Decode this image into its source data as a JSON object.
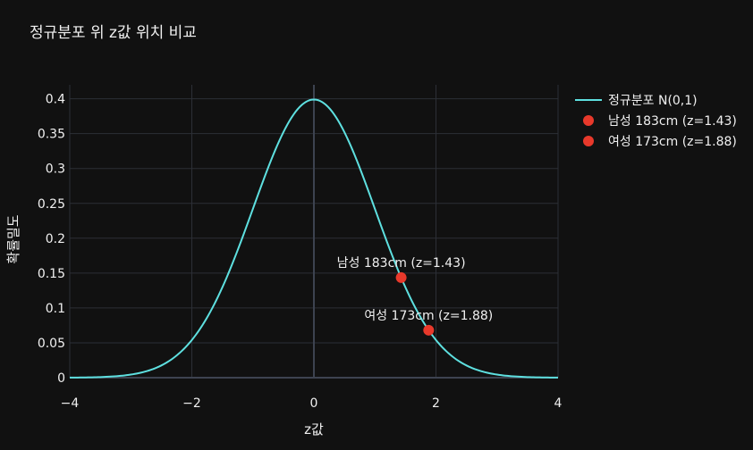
{
  "chart_data": {
    "type": "line",
    "title": "정규분포 위 z값 위치 비교",
    "xlabel": "z값",
    "ylabel": "확률밀도",
    "xlim": [
      -4,
      4
    ],
    "ylim": [
      0,
      0.42
    ],
    "x_ticks": [
      -4,
      -2,
      0,
      2,
      4
    ],
    "x_tick_labels": [
      "−4",
      "−2",
      "0",
      "2",
      "4"
    ],
    "y_ticks": [
      0,
      0.05,
      0.1,
      0.15,
      0.2,
      0.25,
      0.3,
      0.35,
      0.4
    ],
    "y_tick_labels": [
      "0",
      "0.05",
      "0.1",
      "0.15",
      "0.2",
      "0.25",
      "0.3",
      "0.35",
      "0.4"
    ],
    "grid": true,
    "legend_position": "right",
    "series": [
      {
        "name": "정규분포 N(0,1)",
        "kind": "line",
        "color": "#5ee0e0",
        "function": "standard normal pdf"
      },
      {
        "name": "남성 183cm (z=1.43)",
        "kind": "marker",
        "color": "#e8392b",
        "x": 1.43,
        "y": 0.1435,
        "label": "남성 183cm (z=1.43)"
      },
      {
        "name": "여성 173cm (z=1.88)",
        "kind": "marker",
        "color": "#e8392b",
        "x": 1.88,
        "y": 0.0681,
        "label": "여성 173cm (z=1.88)"
      }
    ]
  }
}
